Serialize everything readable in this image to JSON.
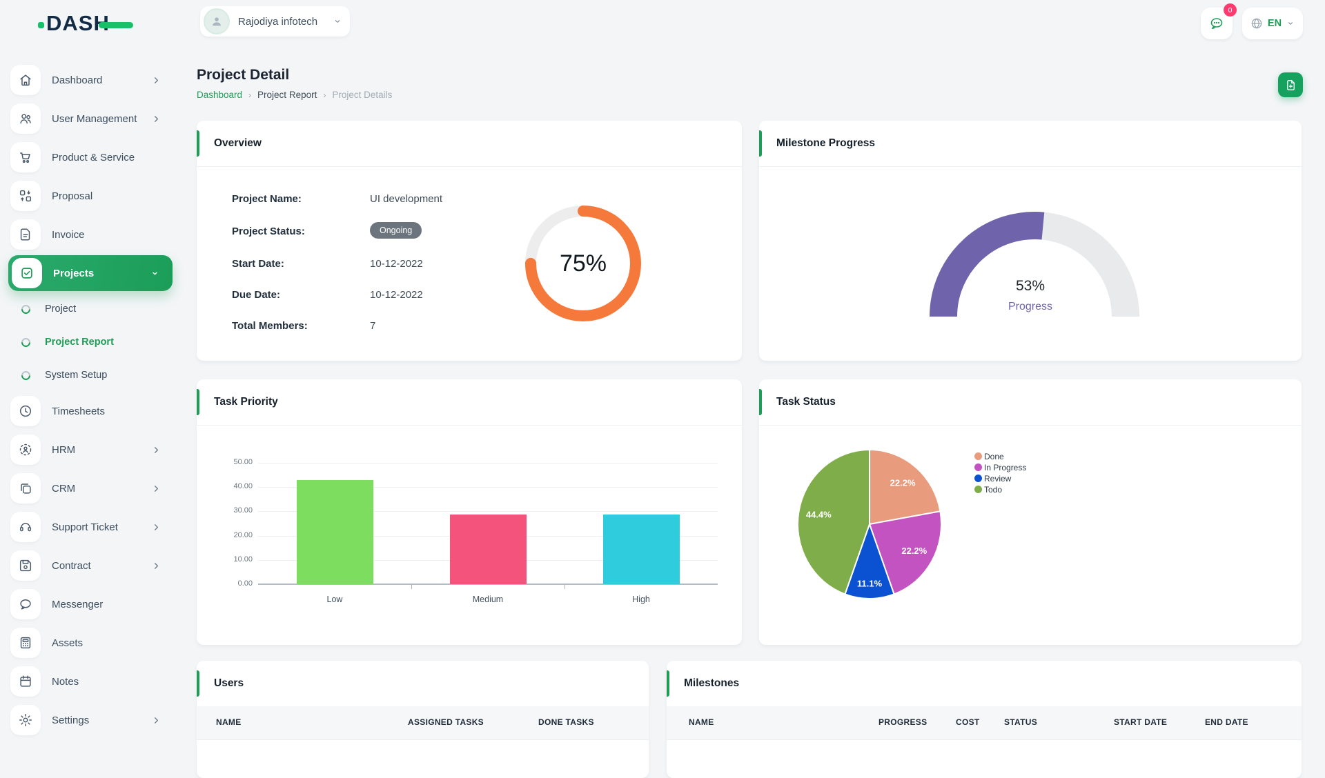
{
  "header": {
    "logo_text": "DASH",
    "company": "Rajodiya infotech",
    "notification_badge": "0",
    "language": "EN"
  },
  "page": {
    "title": "Project Detail",
    "breadcrumb": {
      "home": "Dashboard",
      "section": "Project Report",
      "current": "Project Details",
      "separator": "›"
    }
  },
  "sidebar": {
    "items": [
      {
        "label": "Dashboard"
      },
      {
        "label": "User Management"
      },
      {
        "label": "Product & Service"
      },
      {
        "label": "Proposal"
      },
      {
        "label": "Invoice"
      },
      {
        "label": "Projects"
      },
      {
        "label": "Timesheets"
      },
      {
        "label": "HRM"
      },
      {
        "label": "CRM"
      },
      {
        "label": "Support Ticket"
      },
      {
        "label": "Contract"
      },
      {
        "label": "Messenger"
      },
      {
        "label": "Assets"
      },
      {
        "label": "Notes"
      },
      {
        "label": "Settings"
      }
    ],
    "projects_submenu": [
      {
        "label": "Project"
      },
      {
        "label": "Project Report"
      },
      {
        "label": "System Setup"
      }
    ]
  },
  "overview": {
    "title": "Overview",
    "fields": [
      {
        "label": "Project Name:",
        "value": "UI development"
      },
      {
        "label": "Project Status:",
        "value": "Ongoing"
      },
      {
        "label": "Start Date:",
        "value": "10-12-2022"
      },
      {
        "label": "Due Date:",
        "value": "10-12-2022"
      },
      {
        "label": "Total Members:",
        "value": "7"
      }
    ],
    "donut": {
      "percent": 75,
      "label": "75%",
      "color": "#f5793b",
      "track": "#ededed"
    }
  },
  "milestone": {
    "title": "Milestone Progress",
    "percent": 53,
    "value_label": "53%",
    "caption": "Progress",
    "color": "#6f63ab",
    "track": "#e9eaeb"
  },
  "task_priority": {
    "title": "Task Priority",
    "type": "bar",
    "categories": [
      "Low",
      "Medium",
      "High"
    ],
    "values": [
      42.86,
      28.57,
      28.57
    ],
    "colors": [
      "#7ddd5e",
      "#f4537c",
      "#2fccdd"
    ],
    "yticks": [
      "50.00",
      "40.00",
      "30.00",
      "20.00",
      "10.00",
      "0.00"
    ],
    "ylim": [
      0,
      50
    ]
  },
  "task_status": {
    "title": "Task Status",
    "type": "pie",
    "slices": [
      {
        "name": "Done",
        "pct": 22.2,
        "label": "22.2%",
        "color": "#e99b7d"
      },
      {
        "name": "In Progress",
        "pct": 22.2,
        "label": "22.2%",
        "color": "#c353c1"
      },
      {
        "name": "Review",
        "pct": 11.1,
        "label": "11.1%",
        "color": "#0b52d2"
      },
      {
        "name": "Todo",
        "pct": 44.4,
        "label": "44.4%",
        "color": "#7fad49"
      }
    ]
  },
  "users_table": {
    "title": "Users",
    "columns": [
      "NAME",
      "ASSIGNED TASKS",
      "DONE TASKS"
    ]
  },
  "milestones_table": {
    "title": "Milestones",
    "columns": [
      "NAME",
      "PROGRESS",
      "COST",
      "STATUS",
      "START DATE",
      "END DATE"
    ]
  },
  "colors": {
    "accent_green": "#1f9d57",
    "badge_pink": "#ff3a6e"
  }
}
